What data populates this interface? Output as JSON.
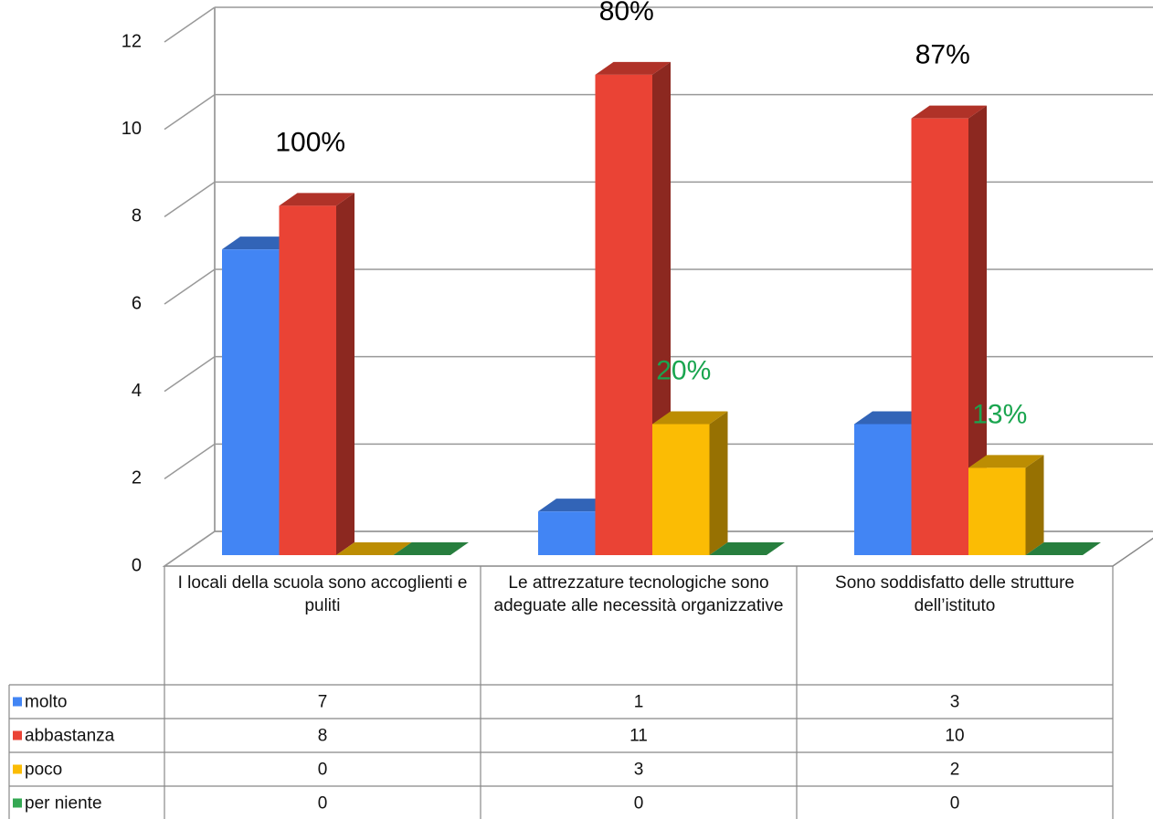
{
  "chart_data": {
    "type": "bar3d",
    "categories": [
      "I locali della scuola sono accoglienti e puliti",
      "Le attrezzature tecnologiche sono adeguate alle necessità organizzative",
      "Sono soddisfatto delle strutture dell’istituto"
    ],
    "series": [
      {
        "name": "molto",
        "color": "#4285f4",
        "values": [
          7,
          1,
          3
        ]
      },
      {
        "name": "abbastanza",
        "color": "#ea4335",
        "values": [
          8,
          11,
          10
        ]
      },
      {
        "name": "poco",
        "color": "#fbbc04",
        "values": [
          0,
          3,
          2
        ]
      },
      {
        "name": "per niente",
        "color": "#34a853",
        "values": [
          0,
          0,
          0
        ]
      }
    ],
    "ylim": [
      0,
      12
    ],
    "yticks": [
      0,
      2,
      4,
      6,
      8,
      10,
      12
    ],
    "grid": true,
    "annotations": [
      {
        "text": "100%",
        "color": "#000000"
      },
      {
        "text": "80%",
        "color": "#000000"
      },
      {
        "text": "87%",
        "color": "#000000"
      },
      {
        "text": "20%",
        "color": "#1aa54f"
      },
      {
        "text": "13%",
        "color": "#1aa54f"
      }
    ]
  }
}
